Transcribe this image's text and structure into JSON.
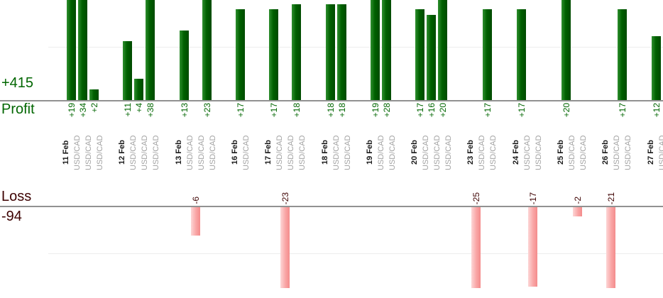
{
  "chart_data": {
    "type": "bar",
    "symbol_label": "USD/CAD",
    "groups": [
      {
        "date": "11 Feb",
        "trades": [
          {
            "symbol": "USD/CAD",
            "value": 19
          },
          {
            "symbol": "USD/CAD",
            "value": 34
          },
          {
            "symbol": "USD/CAD",
            "value": 2
          }
        ]
      },
      {
        "date": "12 Feb",
        "trades": [
          {
            "symbol": "USD/CAD",
            "value": 11
          },
          {
            "symbol": "USD/CAD",
            "value": 4
          },
          {
            "symbol": "USD/CAD",
            "value": 38
          }
        ]
      },
      {
        "date": "13 Feb",
        "trades": [
          {
            "symbol": "USD/CAD",
            "value": 13
          },
          {
            "symbol": "USD/CAD",
            "value": -6
          },
          {
            "symbol": "USD/CAD",
            "value": 23
          }
        ]
      },
      {
        "date": "16 Feb",
        "trades": [
          {
            "symbol": "USD/CAD",
            "value": 17
          }
        ]
      },
      {
        "date": "17 Feb",
        "trades": [
          {
            "symbol": "USD/CAD",
            "value": 17
          },
          {
            "symbol": "USD/CAD",
            "value": -23
          },
          {
            "symbol": "USD/CAD",
            "value": 18
          }
        ]
      },
      {
        "date": "18 Feb",
        "trades": [
          {
            "symbol": "USD/CAD",
            "value": 18
          },
          {
            "symbol": "USD/CAD",
            "value": 18
          }
        ]
      },
      {
        "date": "19 Feb",
        "trades": [
          {
            "symbol": "USD/CAD",
            "value": 19
          },
          {
            "symbol": "USD/CAD",
            "value": 28
          }
        ]
      },
      {
        "date": "20 Feb",
        "trades": [
          {
            "symbol": "USD/CAD",
            "value": 17
          },
          {
            "symbol": "USD/CAD",
            "value": 16
          },
          {
            "symbol": "USD/CAD",
            "value": 20
          }
        ]
      },
      {
        "date": "23 Feb",
        "trades": [
          {
            "symbol": "USD/CAD",
            "value": -25
          },
          {
            "symbol": "USD/CAD",
            "value": 17
          }
        ]
      },
      {
        "date": "24 Feb",
        "trades": [
          {
            "symbol": "USD/CAD",
            "value": 17
          },
          {
            "symbol": "USD/CAD",
            "value": -17
          }
        ]
      },
      {
        "date": "25 Feb",
        "trades": [
          {
            "symbol": "USD/CAD",
            "value": 20
          },
          {
            "symbol": "USD/CAD",
            "value": -2
          }
        ]
      },
      {
        "date": "26 Feb",
        "trades": [
          {
            "symbol": "USD/CAD",
            "value": -21
          },
          {
            "symbol": "USD/CAD",
            "value": 17
          }
        ]
      },
      {
        "date": "27 Feb",
        "trades": [
          {
            "symbol": "USD/CAD",
            "value": 12
          }
        ]
      }
    ],
    "profit": {
      "total_label": "+415",
      "axis_label": "Profit",
      "gridline_interval": 10,
      "visible_value_range": [
        0,
        19
      ]
    },
    "loss": {
      "total_label": "-94",
      "axis_label": "Loss",
      "gridline_interval": 10,
      "visible_value_range": [
        0,
        -17
      ]
    },
    "legend_position": "none",
    "grid": "horizontal-faint",
    "colors": {
      "profit_text": "#006600",
      "loss_text": "#3d0101",
      "date_text": "#1a1a1a",
      "symbol_text": "#a3a3a3",
      "axis_line": "#919191",
      "gridline": "#ededed",
      "profit_bar_gradient": [
        "#2f8f2f",
        "#006000",
        "#004a00"
      ],
      "loss_bar_gradient": [
        "#fdd6d6",
        "#f9a6a6",
        "#f48c8c"
      ]
    }
  }
}
